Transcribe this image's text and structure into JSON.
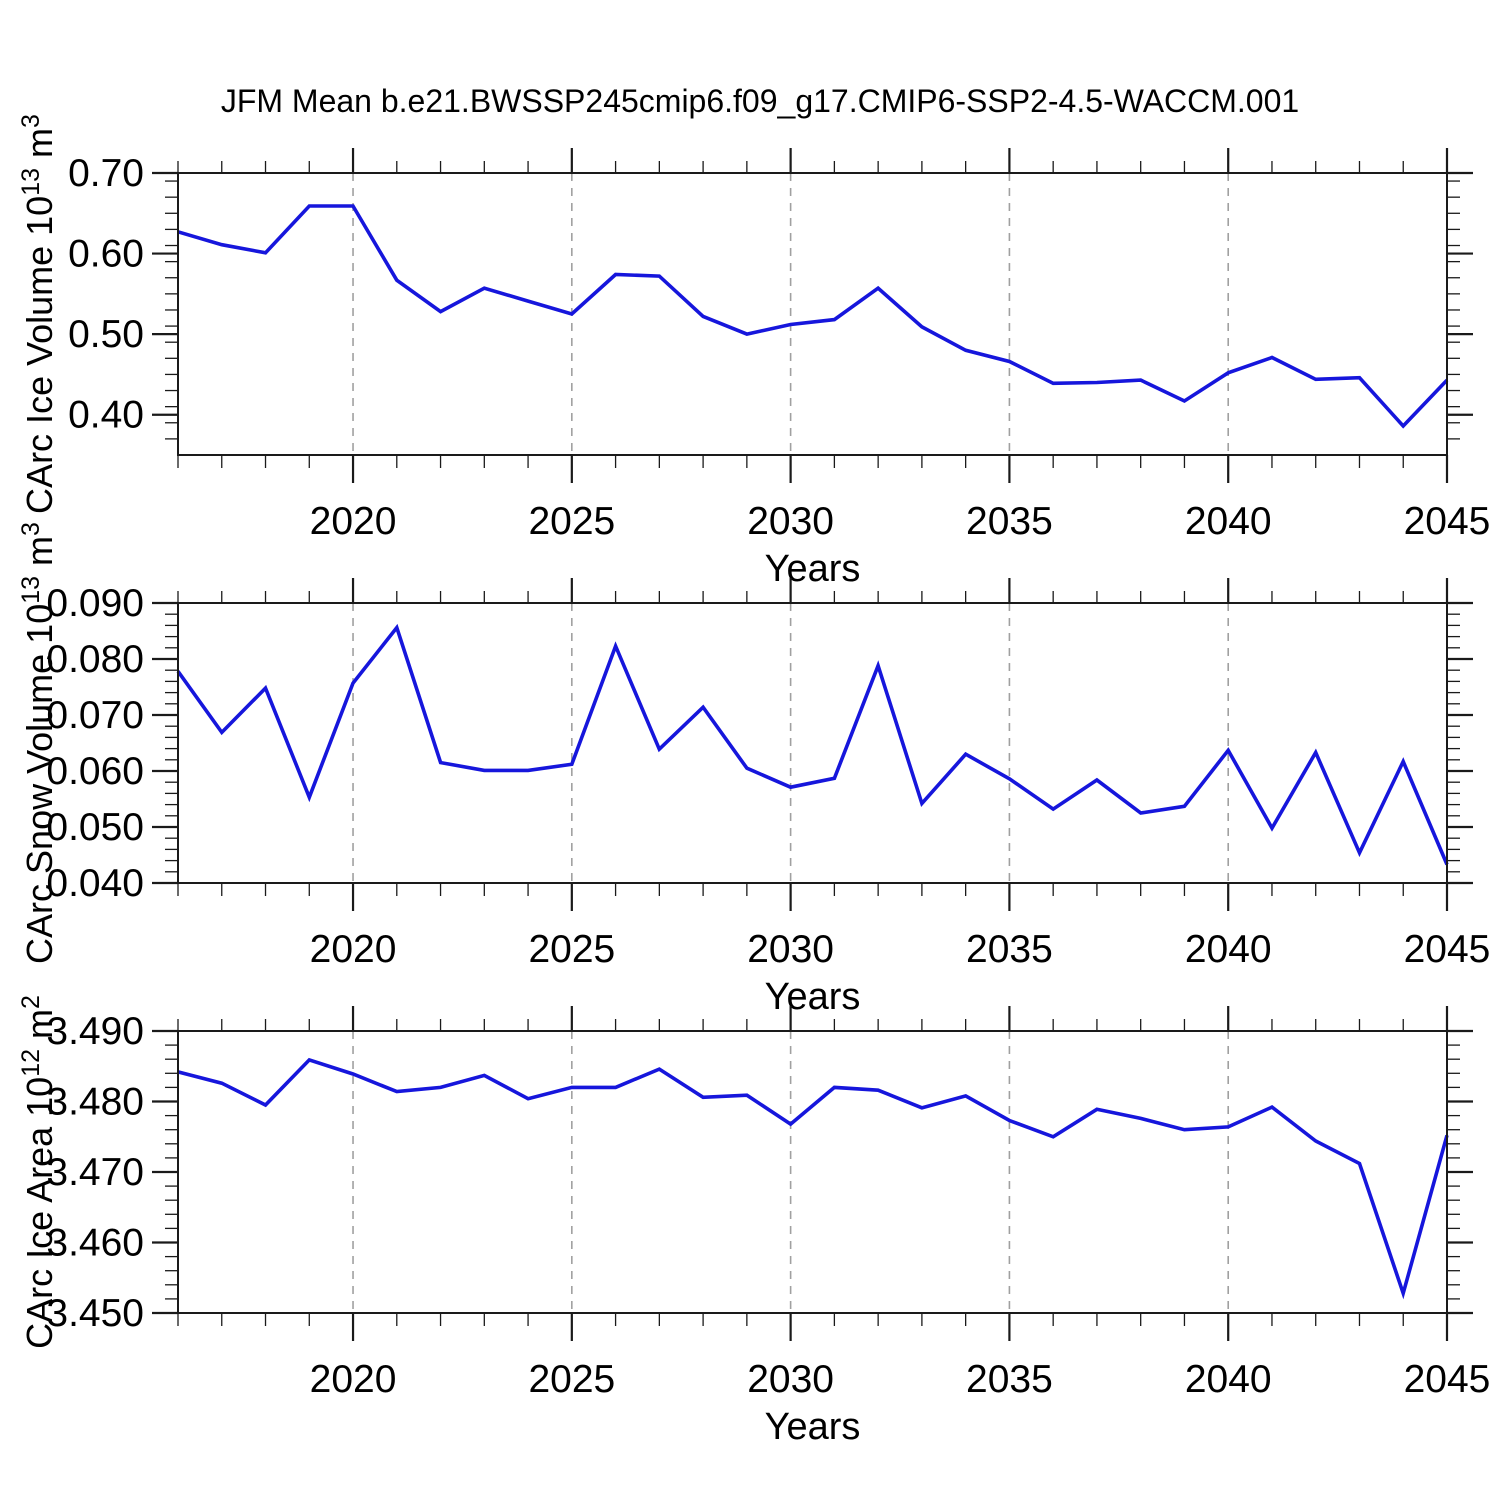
{
  "title": "JFM Mean b.e21.BWSSP245cmip6.f09_g17.CMIP6-SSP2-4.5-WACCM.001",
  "colors": {
    "line": "#1616DC",
    "grid": "#A0A0A0",
    "axis": "#1A1A1A",
    "text": "#000000",
    "background": "#FFFFFF"
  },
  "chart_data": [
    {
      "type": "line",
      "id": "carc-ice-volume",
      "ylabel": "CArc Ice Volume 10^13 m^3",
      "xlabel": "Years",
      "xlim": [
        2016,
        2045
      ],
      "ylim": [
        0.35,
        0.7
      ],
      "x_major_ticks": [
        2020,
        2025,
        2030,
        2035,
        2040,
        2045
      ],
      "x_tick_labels": [
        "2020",
        "2025",
        "2030",
        "2035",
        "2040",
        "2045"
      ],
      "x_minor_step": 1,
      "grid_years": [
        2020,
        2025,
        2030,
        2035,
        2040
      ],
      "y_major_ticks": [
        0.4,
        0.5,
        0.6,
        0.7
      ],
      "y_tick_labels": [
        "0.40",
        "0.50",
        "0.60",
        "0.70"
      ],
      "y_minor_step": 0.02,
      "grid_on": "x-dashed",
      "legend": "none",
      "years": [
        2016,
        2017,
        2018,
        2019,
        2020,
        2021,
        2022,
        2023,
        2024,
        2025,
        2026,
        2027,
        2028,
        2029,
        2030,
        2031,
        2032,
        2033,
        2034,
        2035,
        2036,
        2037,
        2038,
        2039,
        2040,
        2041,
        2042,
        2043,
        2044,
        2045
      ],
      "values": [
        0.627,
        0.611,
        0.601,
        0.659,
        0.659,
        0.567,
        0.528,
        0.557,
        0.541,
        0.525,
        0.574,
        0.572,
        0.522,
        0.5,
        0.512,
        0.518,
        0.557,
        0.509,
        0.48,
        0.466,
        0.439,
        0.44,
        0.443,
        0.417,
        0.452,
        0.471,
        0.444,
        0.446,
        0.386,
        0.443
      ]
    },
    {
      "type": "line",
      "id": "carc-snow-volume",
      "ylabel": "CArc Snow Volume 10^13 m^3",
      "xlabel": "Years",
      "xlim": [
        2016,
        2045
      ],
      "ylim": [
        0.04,
        0.09
      ],
      "x_major_ticks": [
        2020,
        2025,
        2030,
        2035,
        2040,
        2045
      ],
      "x_tick_labels": [
        "2020",
        "2025",
        "2030",
        "2035",
        "2040",
        "2045"
      ],
      "x_minor_step": 1,
      "grid_years": [
        2020,
        2025,
        2030,
        2035,
        2040
      ],
      "y_major_ticks": [
        0.04,
        0.05,
        0.06,
        0.07,
        0.08,
        0.09
      ],
      "y_tick_labels": [
        "0.040",
        "0.050",
        "0.060",
        "0.070",
        "0.080",
        "0.090"
      ],
      "y_minor_step": 0.002,
      "grid_on": "x-dashed",
      "legend": "none",
      "years": [
        2016,
        2017,
        2018,
        2019,
        2020,
        2021,
        2022,
        2023,
        2024,
        2025,
        2026,
        2027,
        2028,
        2029,
        2030,
        2031,
        2032,
        2033,
        2034,
        2035,
        2036,
        2037,
        2038,
        2039,
        2040,
        2041,
        2042,
        2043,
        2044,
        2045
      ],
      "values": [
        0.0778,
        0.0669,
        0.0748,
        0.0553,
        0.0757,
        0.0856,
        0.0615,
        0.0601,
        0.0601,
        0.0612,
        0.0823,
        0.0639,
        0.0714,
        0.0605,
        0.0571,
        0.0587,
        0.0788,
        0.0542,
        0.063,
        0.0586,
        0.0532,
        0.0584,
        0.0525,
        0.0537,
        0.0637,
        0.0498,
        0.0633,
        0.0454,
        0.0617,
        0.0433
      ]
    },
    {
      "type": "line",
      "id": "carc-ice-area",
      "ylabel": "CArc Ice Area 10^12 m^2",
      "xlabel": "Years",
      "xlim": [
        2016,
        2045
      ],
      "ylim": [
        3.45,
        3.49
      ],
      "x_major_ticks": [
        2020,
        2025,
        2030,
        2035,
        2040,
        2045
      ],
      "x_tick_labels": [
        "2020",
        "2025",
        "2030",
        "2035",
        "2040",
        "2045"
      ],
      "x_minor_step": 1,
      "grid_years": [
        2020,
        2025,
        2030,
        2035,
        2040
      ],
      "y_major_ticks": [
        3.45,
        3.46,
        3.47,
        3.48,
        3.49
      ],
      "y_tick_labels": [
        "3.450",
        "3.460",
        "3.470",
        "3.480",
        "3.490"
      ],
      "y_minor_step": 0.002,
      "grid_on": "x-dashed",
      "legend": "none",
      "years": [
        2016,
        2017,
        2018,
        2019,
        2020,
        2021,
        2022,
        2023,
        2024,
        2025,
        2026,
        2027,
        2028,
        2029,
        2030,
        2031,
        2032,
        2033,
        2034,
        2035,
        2036,
        2037,
        2038,
        2039,
        2040,
        2041,
        2042,
        2043,
        2044,
        2045
      ],
      "values": [
        3.4842,
        3.4826,
        3.4795,
        3.4859,
        3.4839,
        3.4814,
        3.482,
        3.4837,
        3.4804,
        3.482,
        3.482,
        3.4846,
        3.4806,
        3.4809,
        3.4768,
        3.482,
        3.4816,
        3.4791,
        3.4808,
        3.4773,
        3.475,
        3.4789,
        3.4776,
        3.476,
        3.4764,
        3.4792,
        3.4744,
        3.4712,
        3.4528,
        3.4752
      ]
    }
  ]
}
